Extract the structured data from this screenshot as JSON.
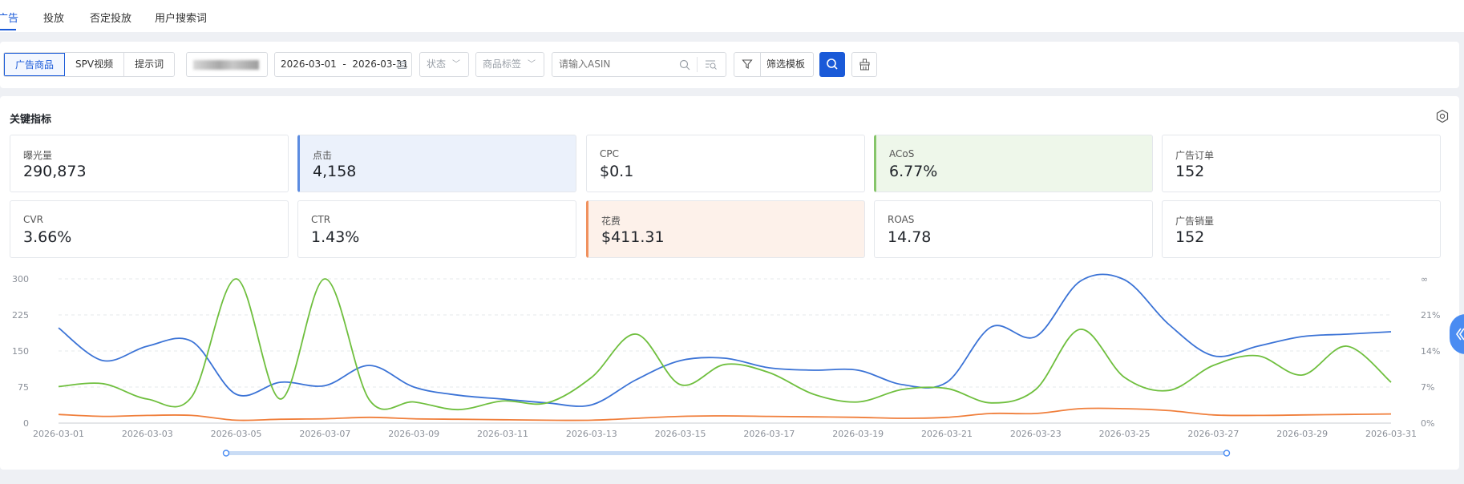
{
  "nav": {
    "tabs": [
      {
        "label": "广告",
        "active": true
      },
      {
        "label": "投放"
      },
      {
        "label": "否定投放"
      },
      {
        "label": "用户搜索词"
      }
    ]
  },
  "filters": {
    "segments": [
      "广告商品",
      "SPV视频",
      "提示词"
    ],
    "date_range": "2026-03-01  -  2026-03-31",
    "status_placeholder": "状态",
    "tag_placeholder": "商品标签",
    "asin_placeholder": "请输入ASIN",
    "template_label": "筛选模板"
  },
  "metrics": {
    "title": "关键指标",
    "cards": [
      {
        "label": "曝光量",
        "value": "290,873"
      },
      {
        "label": "点击",
        "value": "4,158"
      },
      {
        "label": "CPC",
        "value": "$0.1"
      },
      {
        "label": "ACoS",
        "value": "6.77%"
      },
      {
        "label": "广告订单",
        "value": "152"
      },
      {
        "label": "CVR",
        "value": "3.66%"
      },
      {
        "label": "CTR",
        "value": "1.43%"
      },
      {
        "label": "花费",
        "value": "$411.31"
      },
      {
        "label": "ROAS",
        "value": "14.78"
      },
      {
        "label": "广告销量",
        "value": "152"
      }
    ]
  },
  "chart_data": {
    "type": "line",
    "x": [
      "2026-03-01",
      "2026-03-02",
      "2026-03-03",
      "2026-03-04",
      "2026-03-05",
      "2026-03-06",
      "2026-03-07",
      "2026-03-08",
      "2026-03-09",
      "2026-03-10",
      "2026-03-11",
      "2026-03-12",
      "2026-03-13",
      "2026-03-14",
      "2026-03-15",
      "2026-03-16",
      "2026-03-17",
      "2026-03-18",
      "2026-03-19",
      "2026-03-20",
      "2026-03-21",
      "2026-03-22",
      "2026-03-23",
      "2026-03-24",
      "2026-03-25",
      "2026-03-26",
      "2026-03-27",
      "2026-03-28",
      "2026-03-29",
      "2026-03-30",
      "2026-03-31"
    ],
    "x_tick_labels": [
      "2026-03-01",
      "2026-03-03",
      "2026-03-05",
      "2026-03-07",
      "2026-03-09",
      "2026-03-11",
      "2026-03-13",
      "2026-03-15",
      "2026-03-17",
      "2026-03-19",
      "2026-03-21",
      "2026-03-23",
      "2026-03-25",
      "2026-03-27",
      "2026-03-29",
      "2026-03-31"
    ],
    "y_left_ticks": [
      "0",
      "75",
      "150",
      "225",
      "300"
    ],
    "y_right_ticks": [
      "0%",
      "7%",
      "14%",
      "21%",
      "∞"
    ],
    "ylim_left": [
      0,
      300
    ],
    "grid": true,
    "series": [
      {
        "color": "#3b73d6",
        "axis": "left",
        "values": [
          198,
          130,
          160,
          170,
          60,
          85,
          78,
          120,
          75,
          58,
          50,
          42,
          38,
          90,
          130,
          135,
          115,
          110,
          110,
          80,
          85,
          200,
          180,
          295,
          298,
          205,
          140,
          160,
          180,
          185,
          190
        ]
      },
      {
        "color": "#6fbf3e",
        "axis": "left",
        "values": [
          76,
          82,
          50,
          55,
          300,
          50,
          300,
          48,
          44,
          28,
          46,
          42,
          95,
          185,
          80,
          122,
          105,
          60,
          44,
          70,
          72,
          42,
          70,
          195,
          95,
          68,
          120,
          140,
          100,
          160,
          85
        ]
      },
      {
        "color": "#f07f3c",
        "axis": "left",
        "values": [
          18,
          14,
          16,
          16,
          6,
          8,
          9,
          12,
          9,
          8,
          7,
          6,
          6,
          10,
          14,
          15,
          14,
          13,
          12,
          10,
          12,
          20,
          20,
          30,
          30,
          26,
          17,
          16,
          17,
          18,
          19
        ]
      }
    ]
  },
  "colors": {
    "accent": "#1a5ad8"
  }
}
